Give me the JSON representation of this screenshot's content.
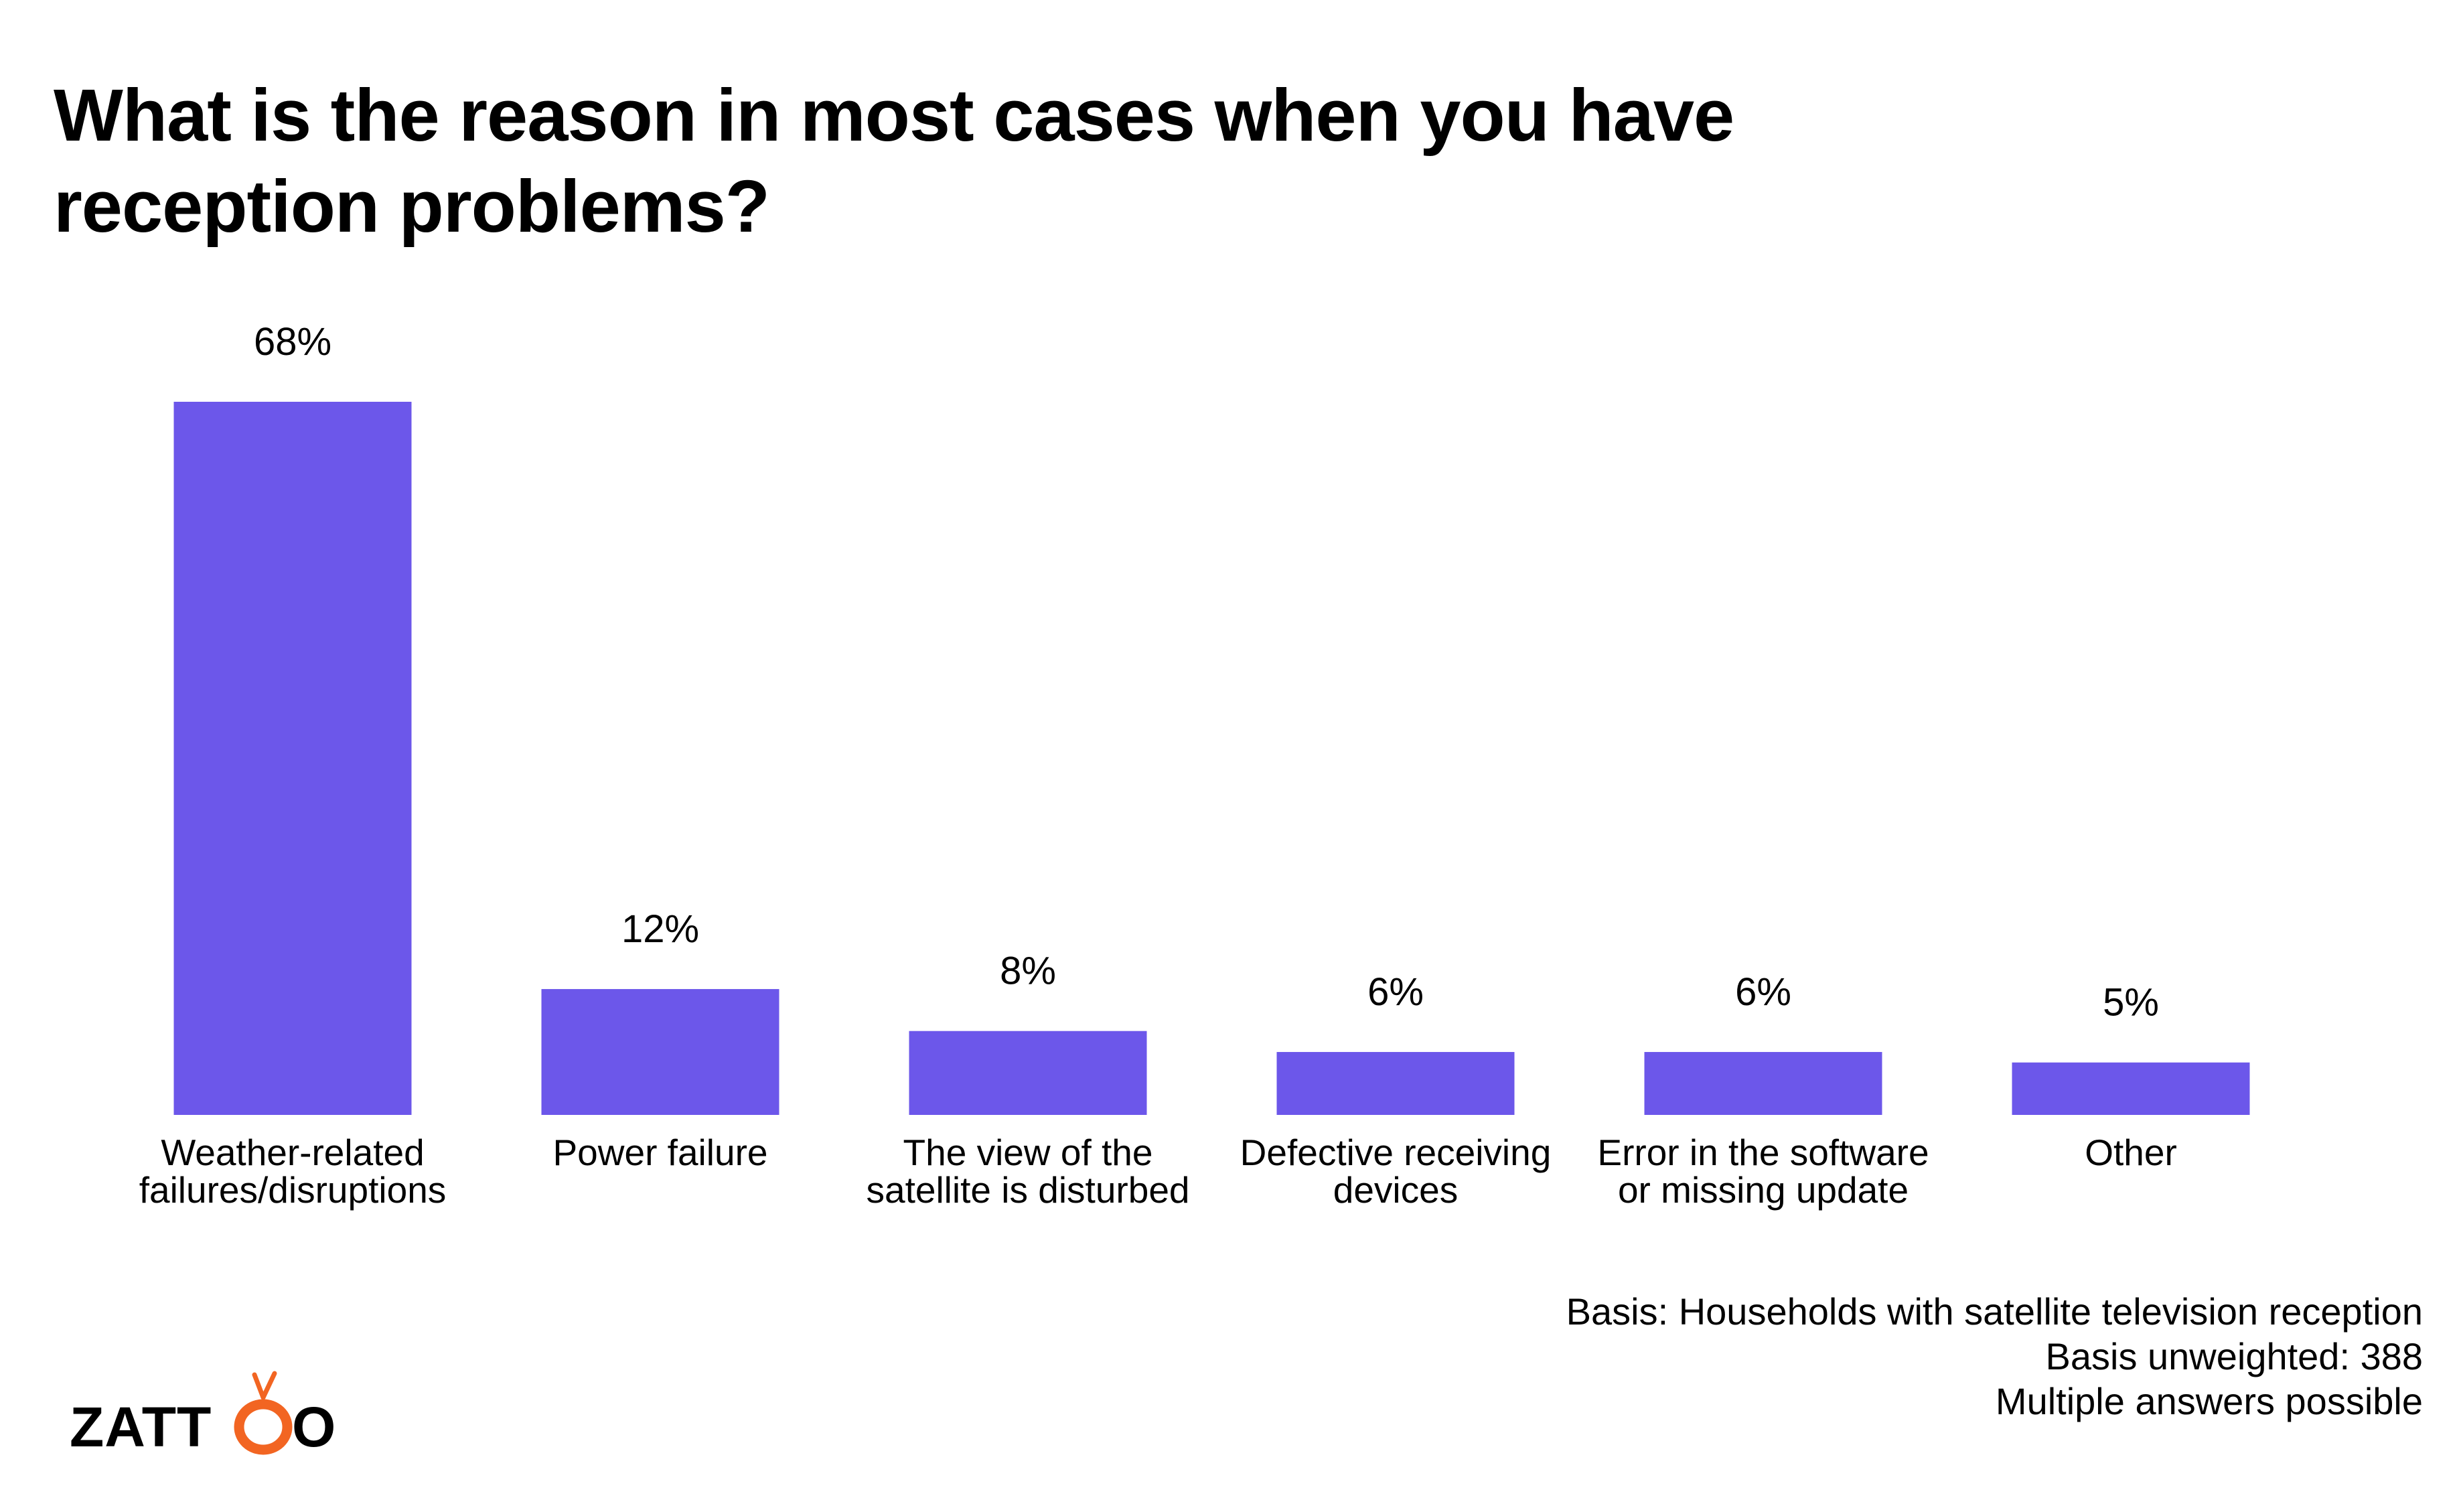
{
  "title_lines": [
    "What is the reason in most cases when you have",
    "reception problems?"
  ],
  "colors": {
    "bar": "#6c57ea",
    "text": "#000000",
    "logo_text": "#000000",
    "logo_accent": "#f26522"
  },
  "chart_data": {
    "type": "bar",
    "title": "What is the reason in most cases when you have reception problems?",
    "categories": [
      [
        "Weather-related",
        "failures/disruptions"
      ],
      [
        "Power failure"
      ],
      [
        "The view of the",
        "satellite is disturbed"
      ],
      [
        "Defective receiving",
        "devices"
      ],
      [
        "Error in the software",
        "or missing update"
      ],
      [
        "Other"
      ]
    ],
    "values": [
      68,
      12,
      8,
      6,
      6,
      5
    ],
    "value_labels": [
      "68%",
      "12%",
      "8%",
      "6%",
      "6%",
      "5%"
    ],
    "unit": "%",
    "ylim": [
      0,
      68
    ],
    "grid": false,
    "legend": "none"
  },
  "footnotes": [
    "Basis: Households with satellite television reception",
    "Basis unweighted: 388",
    "Multiple answers possible"
  ],
  "logo": {
    "text": "ZATTOO",
    "icon": "tv-o-icon"
  }
}
